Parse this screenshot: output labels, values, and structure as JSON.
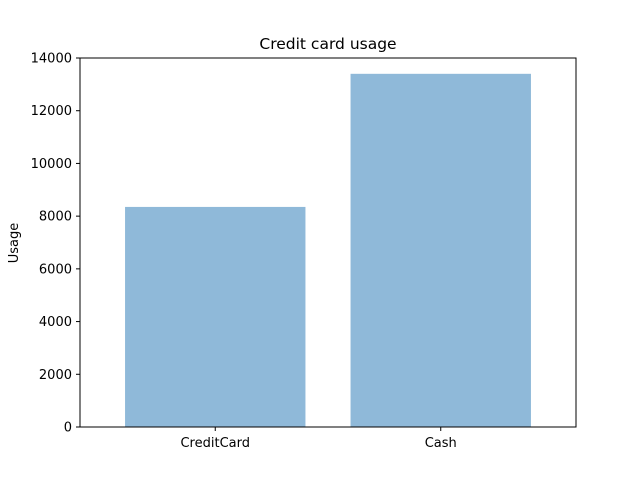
{
  "chart_data": {
    "type": "bar",
    "title": "Credit card usage",
    "xlabel": "",
    "ylabel": "Usage",
    "categories": [
      "CreditCard",
      "Cash"
    ],
    "values": [
      8350,
      13400
    ],
    "ylim": [
      0,
      14000
    ],
    "yticks": [
      0,
      2000,
      4000,
      6000,
      8000,
      10000,
      12000,
      14000
    ],
    "bar_color": "#8fb9d9",
    "grid": false,
    "legend": "none"
  }
}
